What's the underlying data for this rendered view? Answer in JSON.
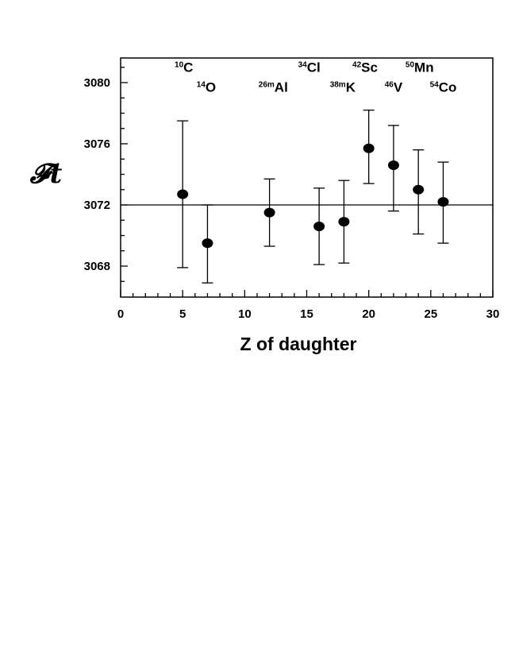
{
  "chart_data": {
    "type": "scatter",
    "xlabel": "Z of daughter",
    "ylabel": "𝓕t",
    "xlim": [
      0,
      30
    ],
    "ylim": [
      3066,
      3082
    ],
    "x_ticks": [
      0,
      5,
      10,
      15,
      20,
      25,
      30
    ],
    "y_ticks": [
      3068,
      3072,
      3076,
      3080
    ],
    "grid": false,
    "reference_line": 3072.0,
    "points": [
      {
        "x": 5,
        "y": 3072.7,
        "err_low": 3067.9,
        "err_high": 3077.5
      },
      {
        "x": 7,
        "y": 3069.5,
        "err_low": 3066.9,
        "err_high": 3072.0
      },
      {
        "x": 12,
        "y": 3071.5,
        "err_low": 3069.3,
        "err_high": 3073.7
      },
      {
        "x": 16,
        "y": 3070.6,
        "err_low": 3068.1,
        "err_high": 3073.1
      },
      {
        "x": 18,
        "y": 3070.9,
        "err_low": 3068.2,
        "err_high": 3073.6
      },
      {
        "x": 20,
        "y": 3075.7,
        "err_low": 3073.4,
        "err_high": 3078.2
      },
      {
        "x": 22,
        "y": 3074.6,
        "err_low": 3071.6,
        "err_high": 3077.2
      },
      {
        "x": 24,
        "y": 3073.0,
        "err_low": 3070.1,
        "err_high": 3075.6
      },
      {
        "x": 26,
        "y": 3072.2,
        "err_low": 3069.5,
        "err_high": 3074.8
      }
    ],
    "annotations": [
      {
        "mass": "10",
        "symbol": "C",
        "x": 5.1,
        "y": 3080.7
      },
      {
        "mass": "14",
        "symbol": "O",
        "x": 6.9,
        "y": 3079.4
      },
      {
        "mass": "26m",
        "symbol": "Al",
        "x": 12.3,
        "y": 3079.4
      },
      {
        "mass": "34",
        "symbol": "Cl",
        "x": 15.2,
        "y": 3080.7
      },
      {
        "mass": "38m",
        "symbol": "K",
        "x": 17.9,
        "y": 3079.4
      },
      {
        "mass": "42",
        "symbol": "Sc",
        "x": 19.7,
        "y": 3080.7
      },
      {
        "mass": "46",
        "symbol": "V",
        "x": 22.0,
        "y": 3079.4
      },
      {
        "mass": "50",
        "symbol": "Mn",
        "x": 24.1,
        "y": 3080.7
      },
      {
        "mass": "54",
        "symbol": "Co",
        "x": 26.0,
        "y": 3079.4
      }
    ]
  }
}
